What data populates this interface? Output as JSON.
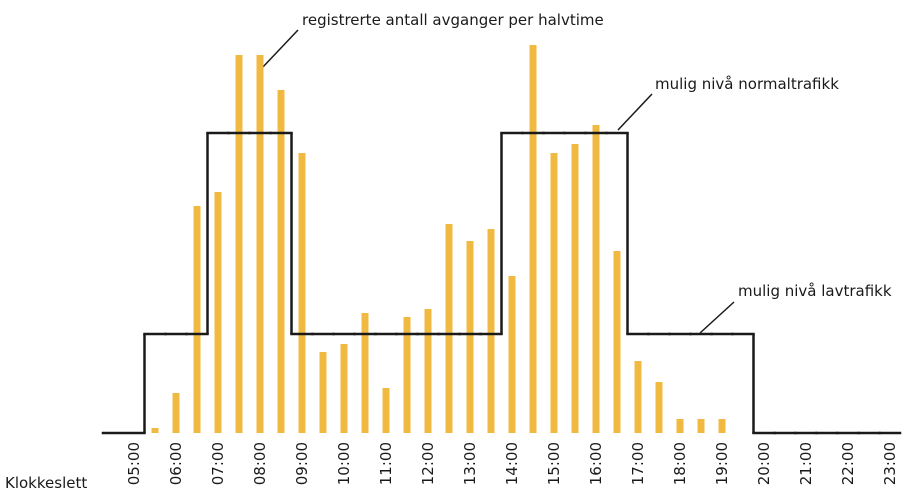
{
  "chart_data": {
    "type": "bar",
    "x_label": "Klokkeslett",
    "annotations": [
      "registrerte antall avganger per halvtime",
      "mulig nivå normaltrafikk",
      "mulig nivå lavtrafikk"
    ],
    "categories": [
      "05:00",
      null,
      "06:00",
      null,
      "07:00",
      null,
      "08:00",
      null,
      "09:00",
      null,
      "10:00",
      null,
      "11:00",
      null,
      "12:00",
      null,
      "13:00",
      null,
      "14:00",
      null,
      "15:00",
      null,
      "16:00",
      null,
      "17:00",
      null,
      "18:00",
      null,
      "19:00",
      null,
      "20:00",
      null,
      "21:00",
      null,
      "22:00",
      null,
      "23:00"
    ],
    "series": [
      {
        "color": "#f0b942",
        "values": [
          null,
          5,
          40,
          227,
          241,
          378,
          378,
          343,
          280,
          81,
          89,
          120,
          45,
          116,
          124,
          209,
          192,
          204,
          157,
          388,
          280,
          289,
          308,
          182,
          72,
          51,
          14,
          14,
          14,
          null,
          null,
          null,
          null,
          null,
          null,
          null,
          null
        ]
      },
      {
        "color": "#1a1a1a",
        "style": "step",
        "values": [
          0,
          99,
          99,
          99,
          300,
          300,
          300,
          300,
          99,
          99,
          99,
          99,
          99,
          99,
          99,
          99,
          99,
          99,
          300,
          300,
          300,
          300,
          300,
          300,
          99,
          99,
          99,
          99,
          99,
          99,
          0,
          0,
          0,
          0,
          0,
          0,
          0
        ]
      }
    ],
    "ylim": [
      0,
      400
    ]
  }
}
